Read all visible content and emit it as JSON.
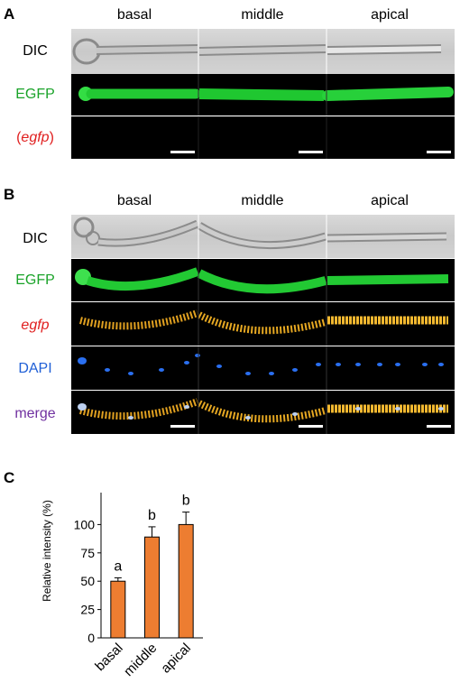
{
  "panel_a": {
    "letter": "A",
    "columns": [
      "basal",
      "middle",
      "apical"
    ],
    "rows": [
      {
        "label": "DIC",
        "color": "#000000"
      },
      {
        "label": "EGFP",
        "color": "#1aa329"
      },
      {
        "label_open": "(",
        "label_italic": "egfp",
        "label_close": ")",
        "color": "#e02020"
      }
    ]
  },
  "panel_b": {
    "letter": "B",
    "columns": [
      "basal",
      "middle",
      "apical"
    ],
    "rows": [
      {
        "label": "DIC",
        "color": "#000000"
      },
      {
        "label": "EGFP",
        "color": "#1aa329"
      },
      {
        "label": "egfp",
        "color": "#e02020"
      },
      {
        "label": "DAPI",
        "color": "#1f5fd6"
      },
      {
        "label": "merge",
        "color": "#7030a0"
      }
    ]
  },
  "panel_c": {
    "letter": "C",
    "chart_data": {
      "type": "bar",
      "categories": [
        "basal",
        "middle",
        "apical"
      ],
      "values": [
        50,
        89,
        100
      ],
      "errors": [
        3,
        9,
        11
      ],
      "significance_letters": [
        "a",
        "b",
        "b"
      ],
      "ylabel": "Relative intensity (%)",
      "ylim": [
        0,
        125
      ],
      "yticks": [
        "0",
        "25",
        "50",
        "75",
        "100"
      ],
      "bar_color": "#ed7d31",
      "grid": false
    }
  }
}
